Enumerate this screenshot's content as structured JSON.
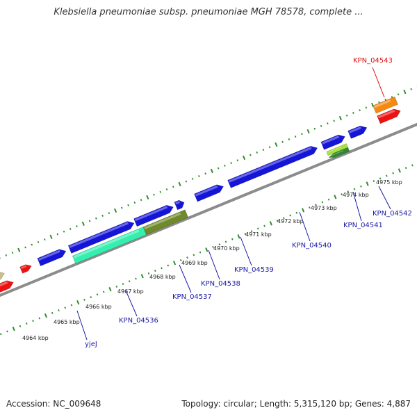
{
  "title": "Klebsiella pneumoniae subsp. pneumoniae MGH 78578, complete ...",
  "footer": {
    "accession": "Accession: NC_009648",
    "summary": "Topology: circular; Length: 5,315,120 bp; Genes: 4,887"
  },
  "colors": {
    "backbone": "#8c8c8c",
    "tick": "#2e8b2e",
    "gene_label": "#1a1aa8",
    "highlight_label": "#e01010",
    "forward": "#1515d8",
    "reverse_red": "#ee1111",
    "teal": "#33f0b0",
    "olive": "#6f8a2a",
    "orange": "#f58a10",
    "lime": "#a8e040",
    "khaki": "#c8c08a"
  },
  "kbp_labels": [
    "4964 kbp",
    "4965 kbp",
    "4966 kbp",
    "4967 kbp",
    "4968 kbp",
    "4969 kbp",
    "4970 kbp",
    "4971 kbp",
    "4972 kbp",
    "4973 kbp",
    "4974 kbp",
    "4975 kbp"
  ],
  "gene_labels": [
    {
      "text": "yjeJ",
      "highlight": false
    },
    {
      "text": "KPN_04536",
      "highlight": false
    },
    {
      "text": "KPN_04537",
      "highlight": false
    },
    {
      "text": "KPN_04538",
      "highlight": false
    },
    {
      "text": "KPN_04539",
      "highlight": false
    },
    {
      "text": "KPN_04540",
      "highlight": false
    },
    {
      "text": "KPN_04541",
      "highlight": false
    },
    {
      "text": "KPN_04542",
      "highlight": false
    },
    {
      "text": "KPN_04543",
      "highlight": true
    }
  ]
}
